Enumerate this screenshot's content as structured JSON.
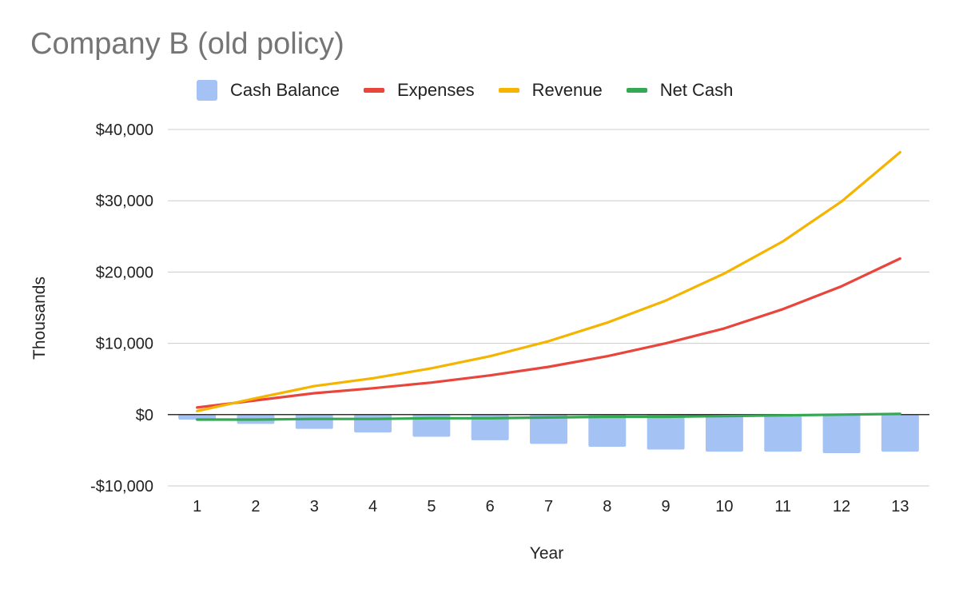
{
  "chart_data": {
    "type": "bar+line",
    "title": "Company B (old policy)",
    "xlabel": "Year",
    "ylabel": "Thousands",
    "categories": [
      "1",
      "2",
      "3",
      "4",
      "5",
      "6",
      "7",
      "8",
      "9",
      "10",
      "11",
      "12",
      "13"
    ],
    "ylim": [
      -10000,
      40000
    ],
    "yticks": [
      -10000,
      0,
      10000,
      20000,
      30000,
      40000
    ],
    "ytick_labels": [
      "-$10,000",
      "$0",
      "$10,000",
      "$20,000",
      "$30,000",
      "$40,000"
    ],
    "grid": true,
    "legend_position": "top",
    "series": [
      {
        "name": "Cash Balance",
        "kind": "bar",
        "color": "#a4c2f4",
        "values": [
          -700,
          -1300,
          -2000,
          -2500,
          -3100,
          -3600,
          -4100,
          -4500,
          -4900,
          -5200,
          -5200,
          -5400,
          -5200
        ]
      },
      {
        "name": "Expenses",
        "kind": "line",
        "color": "#e8453c",
        "values": [
          1000,
          2000,
          3000,
          3700,
          4500,
          5500,
          6700,
          8200,
          10000,
          12100,
          14800,
          18000,
          21900
        ]
      },
      {
        "name": "Revenue",
        "kind": "line",
        "color": "#f4b400",
        "values": [
          500,
          2300,
          4000,
          5100,
          6500,
          8200,
          10300,
          12900,
          16000,
          19800,
          24300,
          29900,
          36800
        ]
      },
      {
        "name": "Net Cash",
        "kind": "line",
        "color": "#34a853",
        "values": [
          -700,
          -700,
          -600,
          -600,
          -500,
          -500,
          -400,
          -300,
          -300,
          -200,
          -100,
          0,
          100
        ]
      }
    ]
  }
}
